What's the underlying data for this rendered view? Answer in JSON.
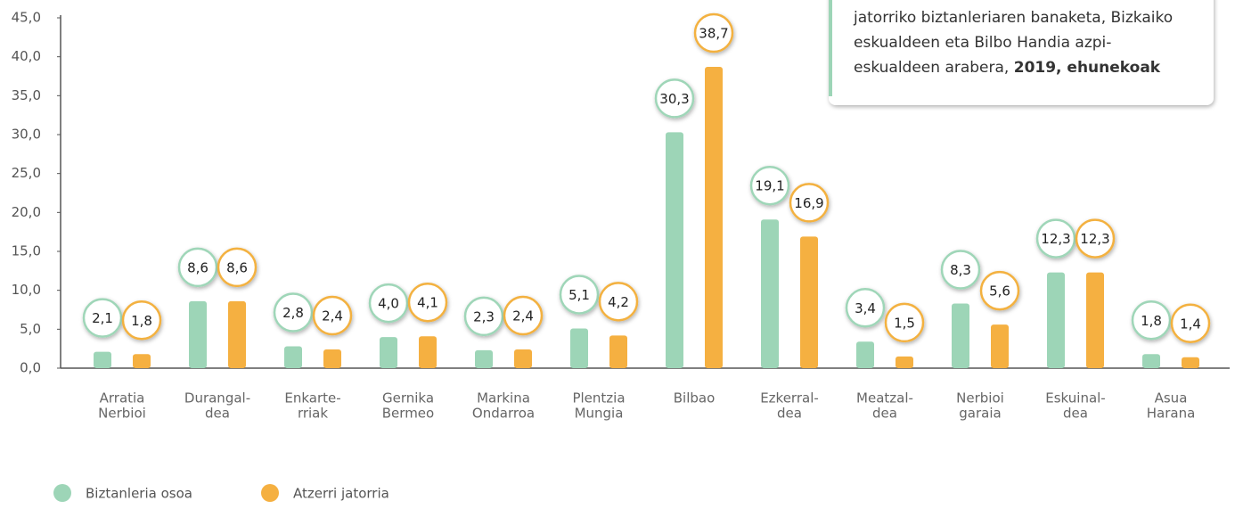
{
  "chart_data": {
    "type": "bar",
    "title_lines": [
      "jatorriko biztanleriaren banaketa, Bizkaiko",
      "eskualdeen eta Bilbo Handia azpi-",
      "eskualdeen arabera,"
    ],
    "title_emphasis": "2019, ehunekoak",
    "categories": [
      [
        "Arratia",
        "Nerbioi"
      ],
      [
        "Durangal-",
        "dea"
      ],
      [
        "Enkarte-",
        "rriak"
      ],
      [
        "Gernika",
        "Bermeo"
      ],
      [
        "Markina",
        "Ondarroa"
      ],
      [
        "Plentzia",
        "Mungia"
      ],
      [
        "Bilbao"
      ],
      [
        "Ezkerral-",
        "dea"
      ],
      [
        "Meatzal-",
        "dea"
      ],
      [
        "Nerbioi",
        "garaia"
      ],
      [
        "Eskuinal-",
        "dea"
      ],
      [
        "Asua",
        "Harana"
      ]
    ],
    "series": [
      {
        "name": "Biztanleria osoa",
        "color": "#9dd5b7",
        "stroke": "#9fd6b8",
        "values": [
          2.1,
          8.6,
          2.8,
          4.0,
          2.3,
          5.1,
          30.3,
          19.1,
          3.4,
          8.3,
          12.3,
          1.8
        ],
        "value_labels": [
          "2,1",
          "8,6",
          "2,8",
          "4,0",
          "2,3",
          "5,1",
          "30,3",
          "19,1",
          "3,4",
          "8,3",
          "12,3",
          "1,8"
        ]
      },
      {
        "name": "Atzerri jatorria",
        "color": "#f5b041",
        "stroke": "#f3b13f",
        "values": [
          1.8,
          8.6,
          2.4,
          4.1,
          2.4,
          4.2,
          38.7,
          16.9,
          1.5,
          5.6,
          12.3,
          1.4
        ],
        "value_labels": [
          "1,8",
          "8,6",
          "2,4",
          "4,1",
          "2,4",
          "4,2",
          "38,7",
          "16,9",
          "1,5",
          "5,6",
          "12,3",
          "1,4"
        ]
      }
    ],
    "ylim": [
      0,
      45
    ],
    "yticks": [
      {
        "value": 0,
        "label": "0,0"
      },
      {
        "value": 5,
        "label": "5,0"
      },
      {
        "value": 10,
        "label": "10,0"
      },
      {
        "value": 15,
        "label": "15,0"
      },
      {
        "value": 20,
        "label": "20,0"
      },
      {
        "value": 25,
        "label": "25,0"
      },
      {
        "value": 30,
        "label": "30,0"
      },
      {
        "value": 35,
        "label": "35,0"
      },
      {
        "value": 40,
        "label": "40,0"
      },
      {
        "value": 45,
        "label": "45,0"
      }
    ]
  }
}
